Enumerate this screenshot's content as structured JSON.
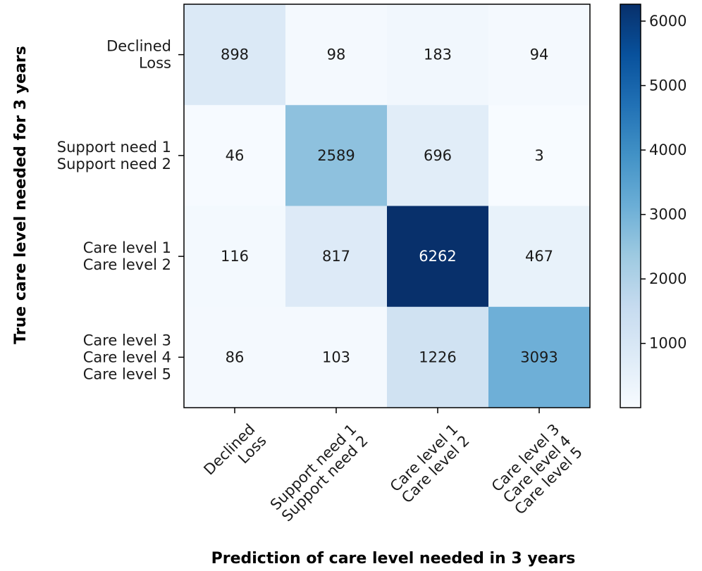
{
  "chart_data": {
    "type": "heatmap",
    "title": "",
    "xlabel": "Prediction of care level needed in 3 years",
    "ylabel": "True care level needed for 3 years",
    "row_labels": [
      [
        "Declined",
        "Loss"
      ],
      [
        "Support need 1",
        "Support need 2"
      ],
      [
        "Care level 1",
        "Care level 2"
      ],
      [
        "Care level 3",
        "Care level 4",
        "Care level 5"
      ]
    ],
    "col_labels": [
      [
        "Declined",
        "Loss"
      ],
      [
        "Support need 1",
        "Support need 2"
      ],
      [
        "Care level 1",
        "Care level 2"
      ],
      [
        "Care level 3",
        "Care level 4",
        "Care level 5"
      ]
    ],
    "values": [
      [
        898,
        98,
        183,
        94
      ],
      [
        46,
        2589,
        696,
        3
      ],
      [
        116,
        817,
        6262,
        467
      ],
      [
        86,
        103,
        1226,
        3093
      ]
    ],
    "colormap": "Blues",
    "colorbar": {
      "min": 3,
      "max": 6262,
      "ticks": [
        1000,
        2000,
        3000,
        4000,
        5000,
        6000
      ]
    }
  }
}
